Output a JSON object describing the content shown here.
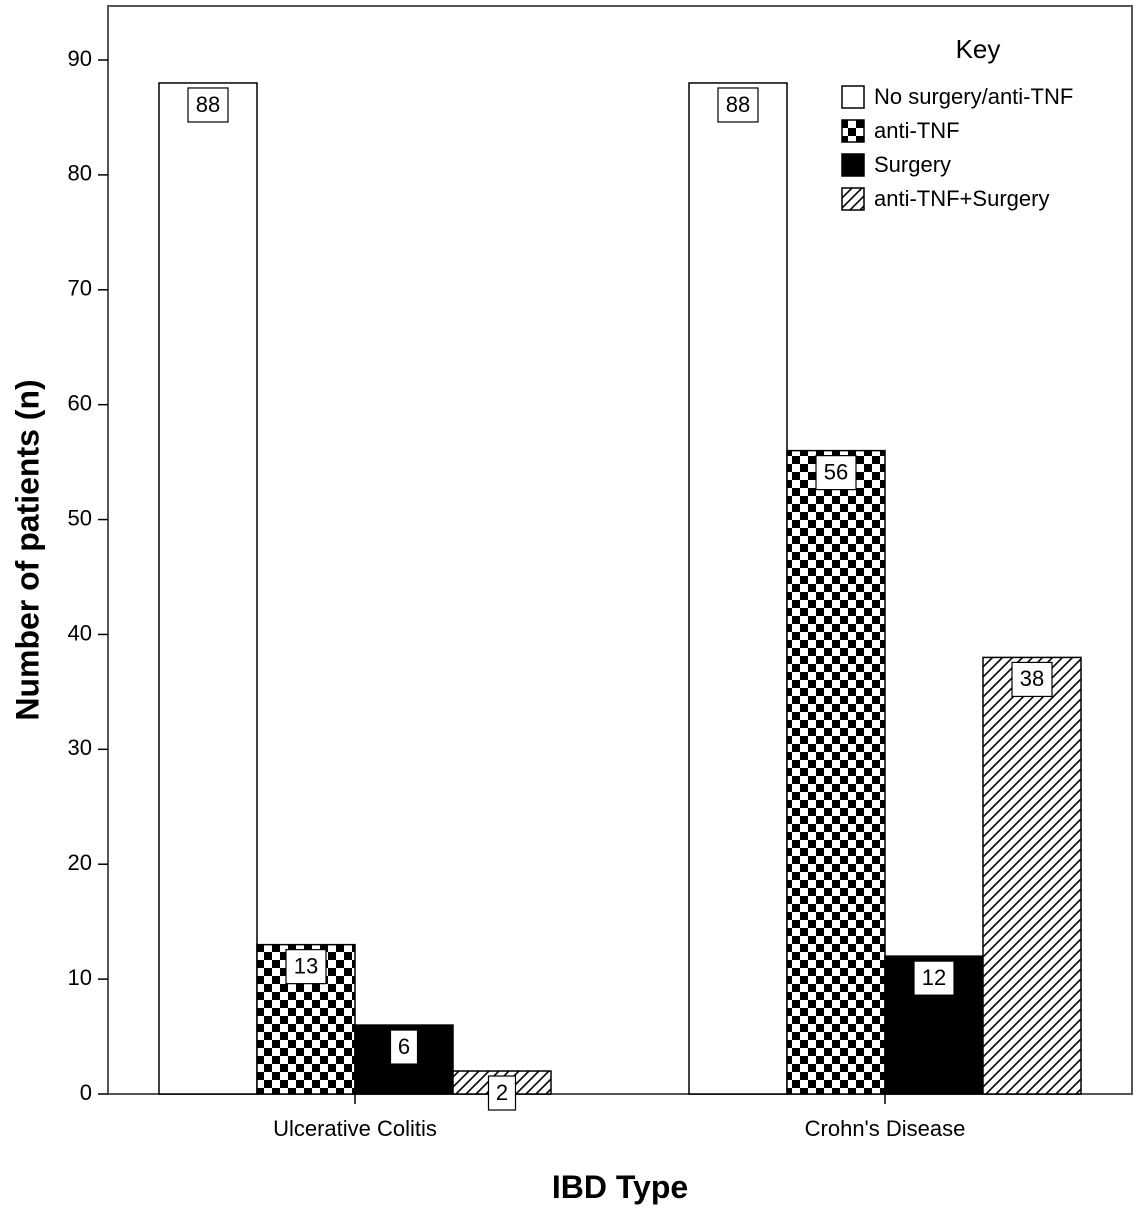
{
  "chart_data": {
    "type": "bar",
    "xlabel": "IBD Type",
    "ylabel": "Number of patients (n)",
    "ylim": [
      0,
      90
    ],
    "yticks": [
      0,
      10,
      20,
      30,
      40,
      50,
      60,
      70,
      80,
      90
    ],
    "categories": [
      "Ulcerative Colitis",
      "Crohn's Disease"
    ],
    "series": [
      {
        "name": "No surgery/anti-TNF",
        "pattern": "none",
        "values": [
          88,
          88
        ]
      },
      {
        "name": "anti-TNF",
        "pattern": "checker",
        "values": [
          13,
          56
        ]
      },
      {
        "name": "Surgery",
        "pattern": "solid",
        "values": [
          6,
          12
        ]
      },
      {
        "name": "anti-TNF+Surgery",
        "pattern": "hatch",
        "values": [
          2,
          38
        ]
      }
    ],
    "legend": {
      "title": "Key",
      "position": "top-right"
    },
    "grid": false,
    "colors": {
      "stroke": "#000000",
      "fill": "#ffffff",
      "solid": "#000000"
    }
  }
}
